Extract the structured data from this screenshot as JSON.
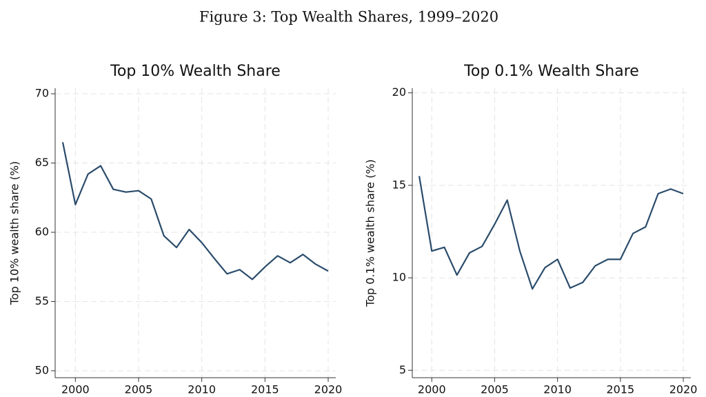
{
  "title": "Figure 3: Top Wealth Shares, 1999–2020",
  "chart_data": [
    {
      "type": "line",
      "title": "Top 10% Wealth Share",
      "y_label": "Top 10% wealth share (%)",
      "x": [
        1999,
        2000,
        2001,
        2002,
        2003,
        2004,
        2005,
        2006,
        2007,
        2008,
        2009,
        2010,
        2011,
        2012,
        2013,
        2014,
        2015,
        2016,
        2017,
        2018,
        2019,
        2020
      ],
      "series": [
        {
          "color": "#2a4b6b",
          "values": [
            66.5,
            62.0,
            64.2,
            64.8,
            63.1,
            62.9,
            63.0,
            62.4,
            59.75,
            58.9,
            60.2,
            59.25,
            58.1,
            57.0,
            57.3,
            56.6,
            57.5,
            58.3,
            57.8,
            58.4,
            57.7,
            57.2
          ]
        }
      ],
      "xlim": [
        1998.4,
        2020.6
      ],
      "xticks": [
        2000,
        2005,
        2010,
        2015,
        2020
      ],
      "ylim": [
        49.5,
        70.4
      ],
      "yticks": [
        50,
        55,
        60,
        65,
        70
      ],
      "grid": true
    },
    {
      "type": "line",
      "title": "Top 0.1% Wealth Share",
      "y_label": "Top 0.1% wealth share (%)",
      "x": [
        1999,
        2000,
        2001,
        2002,
        2003,
        2004,
        2005,
        2006,
        2007,
        2008,
        2009,
        2010,
        2011,
        2012,
        2013,
        2014,
        2015,
        2016,
        2017,
        2018,
        2019,
        2020
      ],
      "series": [
        {
          "color": "#2a4b6b",
          "values": [
            15.5,
            11.45,
            11.65,
            10.15,
            11.35,
            11.7,
            12.9,
            14.2,
            11.45,
            9.4,
            10.55,
            11.0,
            9.45,
            9.75,
            10.65,
            11.0,
            11.0,
            12.4,
            12.75,
            14.55,
            14.8,
            14.55
          ]
        }
      ],
      "xlim": [
        1998.45,
        2020.6
      ],
      "xticks": [
        2000,
        2005,
        2010,
        2015,
        2020
      ],
      "ylim": [
        4.6,
        20.25
      ],
      "yticks": [
        5,
        10,
        15,
        20
      ],
      "grid": true
    }
  ]
}
